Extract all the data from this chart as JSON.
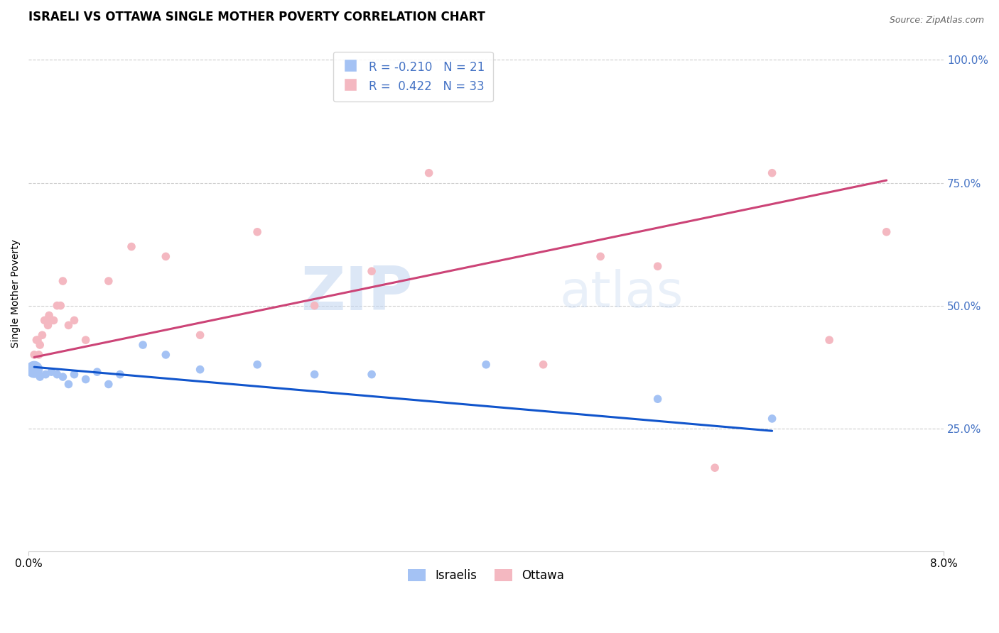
{
  "title": "ISRAELI VS OTTAWA SINGLE MOTHER POVERTY CORRELATION CHART",
  "source": "Source: ZipAtlas.com",
  "ylabel": "Single Mother Poverty",
  "xlim": [
    0.0,
    8.0
  ],
  "ylim": [
    0.0,
    1.05
  ],
  "yticks": [
    0.25,
    0.5,
    0.75,
    1.0
  ],
  "ytick_labels": [
    "25.0%",
    "50.0%",
    "75.0%",
    "100.0%"
  ],
  "xtick_vals": [
    0.0,
    8.0
  ],
  "xtick_labels": [
    "0.0%",
    "8.0%"
  ],
  "legend_R_israeli": "-0.210",
  "legend_N_israeli": "21",
  "legend_R_ottawa": "0.422",
  "legend_N_ottawa": "33",
  "color_israeli": "#a4c2f4",
  "color_ottawa": "#f4b8c1",
  "line_color_israeli": "#1155cc",
  "line_color_ottawa": "#cc4477",
  "watermark_zip": "ZIP",
  "watermark_atlas": "atlas",
  "background_color": "#ffffff",
  "grid_color": "#cccccc",
  "israeli_x": [
    0.05,
    0.1,
    0.15,
    0.2,
    0.25,
    0.3,
    0.35,
    0.4,
    0.5,
    0.6,
    0.7,
    0.8,
    1.0,
    1.2,
    1.5,
    2.0,
    2.5,
    3.0,
    4.0,
    5.5,
    6.5
  ],
  "israeli_y": [
    0.37,
    0.355,
    0.36,
    0.365,
    0.36,
    0.355,
    0.34,
    0.36,
    0.35,
    0.365,
    0.34,
    0.36,
    0.42,
    0.4,
    0.37,
    0.38,
    0.36,
    0.36,
    0.38,
    0.31,
    0.27
  ],
  "israeli_size": [
    300,
    70,
    70,
    70,
    70,
    70,
    70,
    70,
    70,
    70,
    70,
    70,
    70,
    70,
    70,
    70,
    70,
    70,
    70,
    70,
    70
  ],
  "ottawa_x": [
    0.05,
    0.07,
    0.08,
    0.09,
    0.1,
    0.12,
    0.14,
    0.15,
    0.17,
    0.18,
    0.2,
    0.22,
    0.25,
    0.28,
    0.3,
    0.35,
    0.4,
    0.5,
    0.7,
    0.9,
    1.2,
    1.5,
    2.0,
    2.5,
    3.0,
    3.5,
    4.5,
    5.0,
    5.5,
    6.0,
    6.5,
    7.0,
    7.5
  ],
  "ottawa_y": [
    0.4,
    0.43,
    0.43,
    0.4,
    0.42,
    0.44,
    0.47,
    0.47,
    0.46,
    0.48,
    0.47,
    0.47,
    0.5,
    0.5,
    0.55,
    0.46,
    0.47,
    0.43,
    0.55,
    0.62,
    0.6,
    0.44,
    0.65,
    0.5,
    0.57,
    0.77,
    0.38,
    0.6,
    0.58,
    0.17,
    0.77,
    0.43,
    0.65
  ],
  "ottawa_size": [
    70,
    70,
    70,
    70,
    70,
    70,
    70,
    70,
    70,
    70,
    70,
    70,
    70,
    70,
    70,
    70,
    70,
    70,
    70,
    70,
    70,
    70,
    70,
    70,
    70,
    70,
    70,
    70,
    70,
    70,
    70,
    70,
    70
  ],
  "title_fontsize": 12,
  "axis_label_fontsize": 10,
  "tick_fontsize": 11,
  "legend_fontsize": 12,
  "dot_size": 60
}
